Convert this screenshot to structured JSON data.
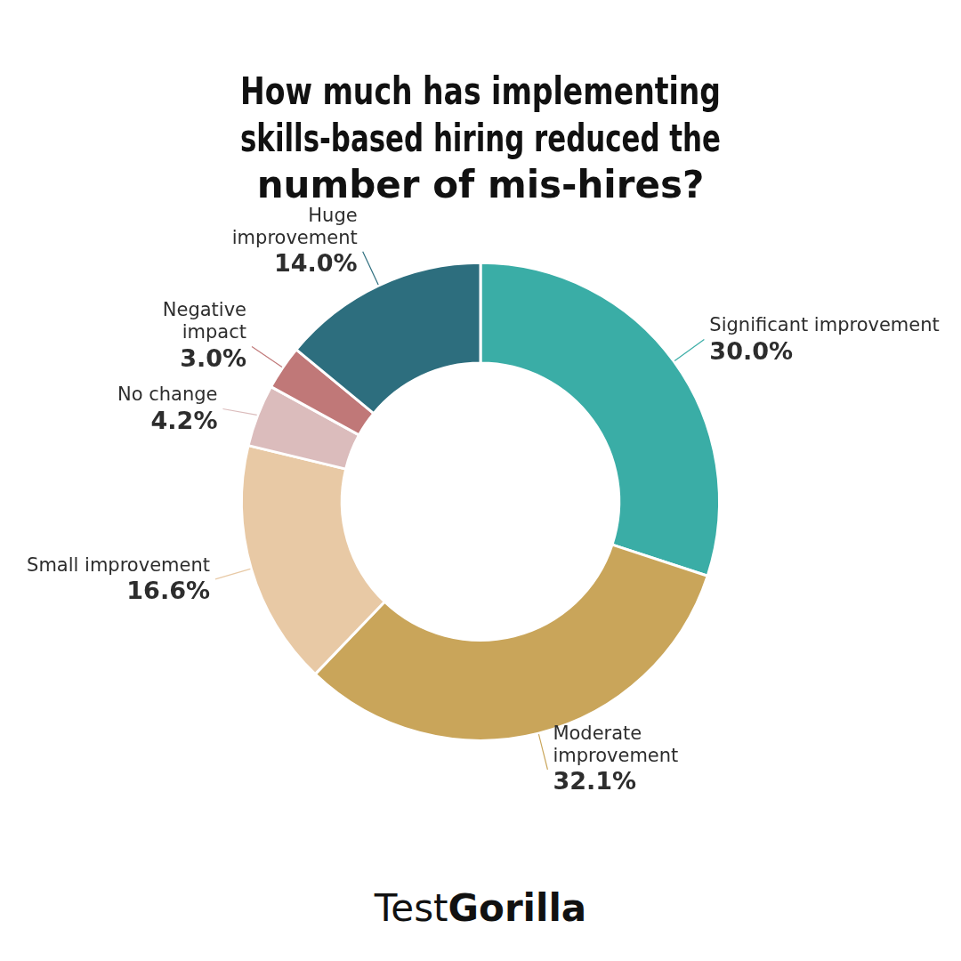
{
  "chart_data": {
    "type": "doughnut",
    "title": "How much has implementing\nskills-based hiring reduced the\nnumber of mis-hires?",
    "categories": [
      "Significant improvement",
      "Moderate\nimprovement",
      "Small improvement",
      "No change",
      "Negative\nimpact",
      "Huge\nimprovement"
    ],
    "values": [
      30.0,
      32.1,
      16.6,
      4.2,
      3.0,
      14.0
    ],
    "value_labels": [
      "30.0%",
      "32.1%",
      "16.6%",
      "4.2%",
      "3.0%",
      "14.0%"
    ],
    "colors": [
      "#3aada6",
      "#c9a55a",
      "#e8c9a5",
      "#dbbcbc",
      "#c07878",
      "#2d6e7e"
    ],
    "data_labels": true,
    "annotations": [
      "Test",
      "Gorilla"
    ]
  }
}
